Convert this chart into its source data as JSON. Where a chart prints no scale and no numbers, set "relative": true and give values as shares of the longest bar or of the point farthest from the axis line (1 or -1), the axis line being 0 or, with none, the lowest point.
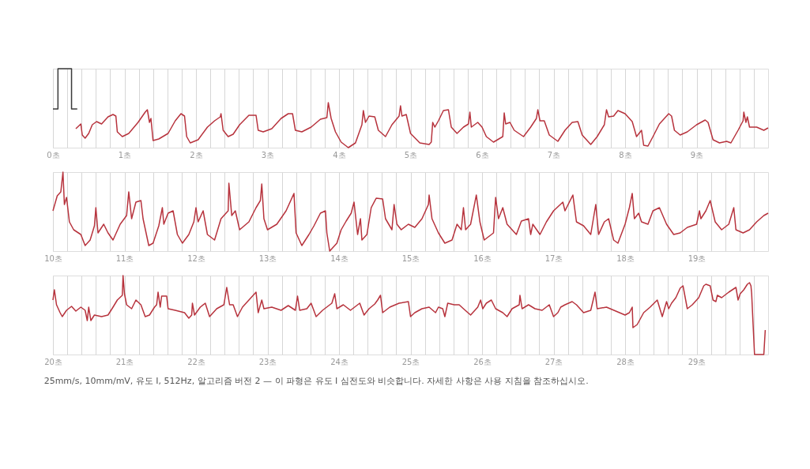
{
  "chart_data": [
    {
      "type": "line",
      "relative": true,
      "grid": "x",
      "tick_labels": "x",
      "xlim": [
        0,
        10
      ],
      "xticks": [
        {
          "value": 0,
          "label": "0초"
        },
        {
          "value": 0.2,
          "label": null
        },
        {
          "value": 0.4,
          "label": null
        },
        {
          "value": 0.6,
          "label": null
        },
        {
          "value": 0.8,
          "label": null
        },
        {
          "value": 1,
          "label": "1초"
        },
        {
          "value": 1.2,
          "label": null
        },
        {
          "value": 1.4,
          "label": null
        },
        {
          "value": 1.6,
          "label": null
        },
        {
          "value": 1.8,
          "label": null
        },
        {
          "value": 2,
          "label": "2초"
        },
        {
          "value": 2.2,
          "label": null
        },
        {
          "value": 2.4,
          "label": null
        },
        {
          "value": 2.6,
          "label": null
        },
        {
          "value": 2.8,
          "label": null
        },
        {
          "value": 3,
          "label": "3초"
        },
        {
          "value": 3.2,
          "label": null
        },
        {
          "value": 3.4,
          "label": null
        },
        {
          "value": 3.6,
          "label": null
        },
        {
          "value": 3.8,
          "label": null
        },
        {
          "value": 4,
          "label": "4초"
        },
        {
          "value": 4.2,
          "label": null
        },
        {
          "value": 4.4,
          "label": null
        },
        {
          "value": 4.6,
          "label": null
        },
        {
          "value": 4.8,
          "label": null
        },
        {
          "value": 5,
          "label": "5초"
        },
        {
          "value": 5.2,
          "label": null
        },
        {
          "value": 5.4,
          "label": null
        },
        {
          "value": 5.6,
          "label": null
        },
        {
          "value": 5.8,
          "label": null
        },
        {
          "value": 6,
          "label": "6초"
        },
        {
          "value": 6.2,
          "label": null
        },
        {
          "value": 6.4,
          "label": null
        },
        {
          "value": 6.6,
          "label": null
        },
        {
          "value": 6.8,
          "label": null
        },
        {
          "value": 7,
          "label": "7초"
        },
        {
          "value": 7.2,
          "label": null
        },
        {
          "value": 7.4,
          "label": null
        },
        {
          "value": 7.6,
          "label": null
        },
        {
          "value": 7.8,
          "label": null
        },
        {
          "value": 8,
          "label": "8초"
        },
        {
          "value": 8.2,
          "label": null
        },
        {
          "value": 8.4,
          "label": null
        },
        {
          "value": 8.6,
          "label": null
        },
        {
          "value": 8.8,
          "label": null
        },
        {
          "value": 9,
          "label": "9초"
        },
        {
          "value": 9.2,
          "label": null
        },
        {
          "value": 9.4,
          "label": null
        },
        {
          "value": 9.6,
          "label": null
        },
        {
          "value": 9.8,
          "label": null
        }
      ],
      "series": [
        {
          "color": "#3a3a3a",
          "x": [
            0,
            0.07,
            0.07,
            0.26,
            0.26,
            0.34
          ],
          "values": [
            0.49,
            0.49,
            1,
            1,
            0.49,
            0.49
          ]
        },
        {
          "color": "#b7333d",
          "x": [
            0.32,
            0.39,
            0.41,
            0.45,
            0.5,
            0.55,
            0.61,
            0.68,
            0.77,
            0.84,
            0.88,
            0.9,
            0.97,
            1.06,
            1.19,
            1.29,
            1.32,
            1.35,
            1.37,
            1.4,
            1.48,
            1.61,
            1.71,
            1.79,
            1.84,
            1.87,
            1.92,
            2.03,
            2.16,
            2.26,
            2.34,
            2.35,
            2.38,
            2.45,
            2.52,
            2.61,
            2.74,
            2.84,
            2.87,
            2.94,
            3.06,
            3.19,
            3.29,
            3.35,
            3.39,
            3.48,
            3.61,
            3.74,
            3.83,
            3.85,
            3.89,
            3.95,
            4.03,
            4.13,
            4.23,
            4.32,
            4.34,
            4.37,
            4.42,
            4.5,
            4.55,
            4.65,
            4.74,
            4.84,
            4.86,
            4.88,
            4.94,
            5.0,
            5.13,
            5.26,
            5.29,
            5.31,
            5.34,
            5.39,
            5.46,
            5.53,
            5.57,
            5.65,
            5.74,
            5.81,
            5.83,
            5.85,
            5.94,
            6.0,
            6.06,
            6.16,
            6.29,
            6.31,
            6.33,
            6.39,
            6.45,
            6.58,
            6.68,
            6.76,
            6.78,
            6.81,
            6.87,
            6.94,
            7.06,
            7.16,
            7.26,
            7.34,
            7.4,
            7.52,
            7.61,
            7.71,
            7.74,
            7.77,
            7.84,
            7.9,
            8.0,
            8.1,
            8.16,
            8.23,
            8.26,
            8.32,
            8.39,
            8.48,
            8.61,
            8.65,
            8.69,
            8.77,
            8.87,
            9.0,
            9.12,
            9.16,
            9.23,
            9.32,
            9.42,
            9.48,
            9.58,
            9.65,
            9.66,
            9.69,
            9.71,
            9.74,
            9.84,
            9.94,
            10.0
          ],
          "values": [
            0.24,
            0.3,
            0.16,
            0.12,
            0.18,
            0.29,
            0.33,
            0.3,
            0.39,
            0.42,
            0.4,
            0.2,
            0.14,
            0.18,
            0.32,
            0.45,
            0.48,
            0.32,
            0.37,
            0.09,
            0.11,
            0.18,
            0.34,
            0.43,
            0.4,
            0.14,
            0.06,
            0.1,
            0.26,
            0.34,
            0.39,
            0.43,
            0.22,
            0.14,
            0.17,
            0.29,
            0.41,
            0.41,
            0.22,
            0.2,
            0.24,
            0.37,
            0.43,
            0.43,
            0.22,
            0.2,
            0.26,
            0.36,
            0.38,
            0.57,
            0.37,
            0.2,
            0.07,
            0,
            0.06,
            0.29,
            0.47,
            0.32,
            0.4,
            0.39,
            0.22,
            0.14,
            0.29,
            0.4,
            0.53,
            0.4,
            0.42,
            0.18,
            0.06,
            0.04,
            0.07,
            0.32,
            0.26,
            0.34,
            0.47,
            0.48,
            0.26,
            0.18,
            0.26,
            0.3,
            0.45,
            0.26,
            0.32,
            0.26,
            0.14,
            0.07,
            0.14,
            0.44,
            0.3,
            0.32,
            0.22,
            0.14,
            0.26,
            0.37,
            0.48,
            0.34,
            0.34,
            0.16,
            0.08,
            0.22,
            0.32,
            0.33,
            0.16,
            0.04,
            0.14,
            0.29,
            0.48,
            0.39,
            0.4,
            0.47,
            0.43,
            0.33,
            0.14,
            0.22,
            0.03,
            0.02,
            0.14,
            0.3,
            0.43,
            0.4,
            0.22,
            0.16,
            0.2,
            0.29,
            0.35,
            0.32,
            0.1,
            0.06,
            0.08,
            0.06,
            0.22,
            0.34,
            0.45,
            0.32,
            0.39,
            0.26,
            0.26,
            0.22,
            0.25
          ]
        }
      ]
    },
    {
      "type": "line",
      "relative": true,
      "grid": "x",
      "tick_labels": "x",
      "xlim": [
        10,
        20
      ],
      "xticks": [
        {
          "value": 10,
          "label": "10초"
        },
        {
          "value": 10.2,
          "label": null
        },
        {
          "value": 10.4,
          "label": null
        },
        {
          "value": 10.6,
          "label": null
        },
        {
          "value": 10.8,
          "label": null
        },
        {
          "value": 11,
          "label": "11초"
        },
        {
          "value": 11.2,
          "label": null
        },
        {
          "value": 11.4,
          "label": null
        },
        {
          "value": 11.6,
          "label": null
        },
        {
          "value": 11.8,
          "label": null
        },
        {
          "value": 12,
          "label": "12초"
        },
        {
          "value": 12.2,
          "label": null
        },
        {
          "value": 12.4,
          "label": null
        },
        {
          "value": 12.6,
          "label": null
        },
        {
          "value": 12.8,
          "label": null
        },
        {
          "value": 13,
          "label": "13초"
        },
        {
          "value": 13.2,
          "label": null
        },
        {
          "value": 13.4,
          "label": null
        },
        {
          "value": 13.6,
          "label": null
        },
        {
          "value": 13.8,
          "label": null
        },
        {
          "value": 14,
          "label": "14초"
        },
        {
          "value": 14.2,
          "label": null
        },
        {
          "value": 14.4,
          "label": null
        },
        {
          "value": 14.6,
          "label": null
        },
        {
          "value": 14.8,
          "label": null
        },
        {
          "value": 15,
          "label": "15초"
        },
        {
          "value": 15.2,
          "label": null
        },
        {
          "value": 15.4,
          "label": null
        },
        {
          "value": 15.6,
          "label": null
        },
        {
          "value": 15.8,
          "label": null
        },
        {
          "value": 16,
          "label": "16초"
        },
        {
          "value": 16.2,
          "label": null
        },
        {
          "value": 16.4,
          "label": null
        },
        {
          "value": 16.6,
          "label": null
        },
        {
          "value": 16.8,
          "label": null
        },
        {
          "value": 17,
          "label": "17초"
        },
        {
          "value": 17.2,
          "label": null
        },
        {
          "value": 17.4,
          "label": null
        },
        {
          "value": 17.6,
          "label": null
        },
        {
          "value": 17.8,
          "label": null
        },
        {
          "value": 18,
          "label": "18초"
        },
        {
          "value": 18.2,
          "label": null
        },
        {
          "value": 18.4,
          "label": null
        },
        {
          "value": 18.6,
          "label": null
        },
        {
          "value": 18.8,
          "label": null
        },
        {
          "value": 19,
          "label": "19초"
        },
        {
          "value": 19.2,
          "label": null
        },
        {
          "value": 19.4,
          "label": null
        },
        {
          "value": 19.6,
          "label": null
        },
        {
          "value": 19.8,
          "label": null
        }
      ],
      "series": [
        {
          "color": "#b7333d",
          "x": [
            10.0,
            10.06,
            10.11,
            10.14,
            10.16,
            10.19,
            10.23,
            10.29,
            10.39,
            10.45,
            10.52,
            10.58,
            10.6,
            10.63,
            10.71,
            10.77,
            10.84,
            10.94,
            11.03,
            11.06,
            11.1,
            11.16,
            11.23,
            11.26,
            11.34,
            11.4,
            11.48,
            11.53,
            11.55,
            11.61,
            11.68,
            11.74,
            11.81,
            11.9,
            11.97,
            12.0,
            12.03,
            12.1,
            12.16,
            12.26,
            12.35,
            12.45,
            12.46,
            12.5,
            12.55,
            12.61,
            12.74,
            12.84,
            12.9,
            12.92,
            12.95,
            13.0,
            13.13,
            13.26,
            13.37,
            13.4,
            13.48,
            13.58,
            13.65,
            13.74,
            13.81,
            13.83,
            13.87,
            13.97,
            14.03,
            14.1,
            14.17,
            14.21,
            14.26,
            14.3,
            14.32,
            14.39,
            14.45,
            14.52,
            14.61,
            14.65,
            14.74,
            14.77,
            14.81,
            14.87,
            14.97,
            15.06,
            15.16,
            15.25,
            15.26,
            15.3,
            15.39,
            15.48,
            15.58,
            15.65,
            15.71,
            15.74,
            15.77,
            15.84,
            15.92,
            15.97,
            16.03,
            16.16,
            16.19,
            16.23,
            16.29,
            16.35,
            16.48,
            16.55,
            16.65,
            16.68,
            16.71,
            16.81,
            16.9,
            17.0,
            17.13,
            17.16,
            17.27,
            17.32,
            17.42,
            17.52,
            17.59,
            17.63,
            17.71,
            17.77,
            17.84,
            17.9,
            18.0,
            18.06,
            18.1,
            18.13,
            18.19,
            18.23,
            18.32,
            18.39,
            18.48,
            18.58,
            18.68,
            18.77,
            18.87,
            19.0,
            19.04,
            19.06,
            19.13,
            19.19,
            19.26,
            19.35,
            19.45,
            19.52,
            19.55,
            19.65,
            19.74,
            19.84,
            19.94,
            20.0
          ],
          "values": [
            0.51,
            0.7,
            0.75,
            1,
            0.59,
            0.68,
            0.37,
            0.27,
            0.21,
            0.07,
            0.14,
            0.32,
            0.55,
            0.23,
            0.34,
            0.23,
            0.14,
            0.34,
            0.45,
            0.75,
            0.41,
            0.62,
            0.64,
            0.41,
            0.07,
            0.1,
            0.32,
            0.55,
            0.34,
            0.48,
            0.51,
            0.21,
            0.1,
            0.21,
            0.37,
            0.55,
            0.37,
            0.51,
            0.21,
            0.14,
            0.41,
            0.51,
            0.86,
            0.45,
            0.51,
            0.27,
            0.37,
            0.55,
            0.64,
            0.85,
            0.41,
            0.27,
            0.34,
            0.51,
            0.73,
            0.23,
            0.07,
            0.21,
            0.32,
            0.48,
            0.51,
            0.23,
            0,
            0.1,
            0.27,
            0.38,
            0.48,
            0.62,
            0.21,
            0.41,
            0.14,
            0.21,
            0.55,
            0.67,
            0.66,
            0.41,
            0.27,
            0.59,
            0.34,
            0.27,
            0.34,
            0.3,
            0.41,
            0.59,
            0.71,
            0.41,
            0.23,
            0.1,
            0.14,
            0.34,
            0.27,
            0.55,
            0.27,
            0.34,
            0.71,
            0.37,
            0.14,
            0.23,
            0.68,
            0.41,
            0.55,
            0.34,
            0.21,
            0.38,
            0.41,
            0.21,
            0.34,
            0.21,
            0.37,
            0.51,
            0.62,
            0.51,
            0.71,
            0.37,
            0.32,
            0.21,
            0.59,
            0.21,
            0.37,
            0.41,
            0.14,
            0.1,
            0.34,
            0.55,
            0.73,
            0.41,
            0.48,
            0.37,
            0.34,
            0.51,
            0.55,
            0.34,
            0.21,
            0.23,
            0.3,
            0.34,
            0.51,
            0.41,
            0.51,
            0.64,
            0.37,
            0.27,
            0.34,
            0.55,
            0.27,
            0.23,
            0.27,
            0.37,
            0.45,
            0.48
          ]
        }
      ]
    },
    {
      "type": "line",
      "relative": true,
      "grid": "x",
      "tick_labels": "x",
      "xlim": [
        20,
        30
      ],
      "xticks": [
        {
          "value": 20,
          "label": "20초"
        },
        {
          "value": 20.2,
          "label": null
        },
        {
          "value": 20.4,
          "label": null
        },
        {
          "value": 20.6,
          "label": null
        },
        {
          "value": 20.8,
          "label": null
        },
        {
          "value": 21,
          "label": "21초"
        },
        {
          "value": 21.2,
          "label": null
        },
        {
          "value": 21.4,
          "label": null
        },
        {
          "value": 21.6,
          "label": null
        },
        {
          "value": 21.8,
          "label": null
        },
        {
          "value": 22,
          "label": "22초"
        },
        {
          "value": 22.2,
          "label": null
        },
        {
          "value": 22.4,
          "label": null
        },
        {
          "value": 22.6,
          "label": null
        },
        {
          "value": 22.8,
          "label": null
        },
        {
          "value": 23,
          "label": "23초"
        },
        {
          "value": 23.2,
          "label": null
        },
        {
          "value": 23.4,
          "label": null
        },
        {
          "value": 23.6,
          "label": null
        },
        {
          "value": 23.8,
          "label": null
        },
        {
          "value": 24,
          "label": "24초"
        },
        {
          "value": 24.2,
          "label": null
        },
        {
          "value": 24.4,
          "label": null
        },
        {
          "value": 24.6,
          "label": null
        },
        {
          "value": 24.8,
          "label": null
        },
        {
          "value": 25,
          "label": "25초"
        },
        {
          "value": 25.2,
          "label": null
        },
        {
          "value": 25.4,
          "label": null
        },
        {
          "value": 25.6,
          "label": null
        },
        {
          "value": 25.8,
          "label": null
        },
        {
          "value": 26,
          "label": "26초"
        },
        {
          "value": 26.2,
          "label": null
        },
        {
          "value": 26.4,
          "label": null
        },
        {
          "value": 26.6,
          "label": null
        },
        {
          "value": 26.8,
          "label": null
        },
        {
          "value": 27,
          "label": "27초"
        },
        {
          "value": 27.2,
          "label": null
        },
        {
          "value": 27.4,
          "label": null
        },
        {
          "value": 27.6,
          "label": null
        },
        {
          "value": 27.8,
          "label": null
        },
        {
          "value": 28,
          "label": "28초"
        },
        {
          "value": 28.2,
          "label": null
        },
        {
          "value": 28.4,
          "label": null
        },
        {
          "value": 28.6,
          "label": null
        },
        {
          "value": 28.8,
          "label": null
        },
        {
          "value": 29,
          "label": "29초"
        },
        {
          "value": 29.2,
          "label": null
        },
        {
          "value": 29.4,
          "label": null
        },
        {
          "value": 29.6,
          "label": null
        },
        {
          "value": 29.8,
          "label": null
        }
      ],
      "annotations": [
        "25mm/s, 10mm/mV, 유도 I, 512Hz, 알고리즘 버전 2 — 이 파형은 유도 I 심전도와 비슷합니다. 자세한 사항은 사용 지침을 참조하십시오."
      ],
      "series": [
        {
          "color": "#b7333d",
          "x": [
            20.0,
            20.02,
            20.05,
            20.1,
            20.13,
            20.19,
            20.26,
            20.32,
            20.39,
            20.45,
            20.48,
            20.5,
            20.53,
            20.58,
            20.68,
            20.77,
            20.84,
            20.9,
            20.97,
            20.98,
            21.0,
            21.03,
            21.1,
            21.16,
            21.23,
            21.29,
            21.35,
            21.42,
            21.45,
            21.47,
            21.5,
            21.52,
            21.59,
            21.61,
            21.71,
            21.84,
            21.9,
            21.94,
            21.95,
            21.98,
            22.06,
            22.13,
            22.19,
            22.29,
            22.39,
            22.43,
            22.47,
            22.52,
            22.58,
            22.65,
            22.74,
            22.84,
            22.87,
            22.92,
            22.95,
            23.06,
            23.19,
            23.29,
            23.39,
            23.42,
            23.45,
            23.55,
            23.61,
            23.68,
            23.77,
            23.9,
            23.94,
            23.97,
            24.06,
            24.16,
            24.29,
            24.35,
            24.42,
            24.5,
            24.54,
            24.58,
            24.61,
            24.71,
            24.84,
            24.97,
            25.0,
            25.06,
            25.16,
            25.26,
            25.35,
            25.39,
            25.45,
            25.48,
            25.52,
            25.61,
            25.68,
            25.74,
            25.84,
            25.94,
            25.98,
            26.01,
            26.06,
            26.13,
            26.19,
            26.29,
            26.35,
            26.42,
            26.52,
            26.53,
            26.56,
            26.65,
            26.74,
            26.84,
            26.94,
            27.0,
            27.06,
            27.1,
            27.16,
            27.26,
            27.32,
            27.42,
            27.52,
            27.58,
            27.61,
            27.74,
            27.87,
            28.0,
            28.06,
            28.1,
            28.11,
            28.17,
            28.26,
            28.35,
            28.45,
            28.52,
            28.58,
            28.61,
            28.65,
            28.71,
            28.77,
            28.81,
            28.87,
            28.94,
            29.03,
            29.1,
            29.13,
            29.19,
            29.23,
            29.27,
            29.29,
            29.35,
            29.45,
            29.55,
            29.58,
            29.61,
            29.66,
            29.71,
            29.74,
            29.76,
            29.77,
            29.79,
            29.81,
            29.94,
            29.96
          ],
          "values": [
            0.69,
            0.82,
            0.63,
            0.53,
            0.48,
            0.56,
            0.61,
            0.55,
            0.6,
            0.56,
            0.43,
            0.6,
            0.43,
            0.5,
            0.48,
            0.5,
            0.6,
            0.69,
            0.75,
            1,
            0.77,
            0.63,
            0.58,
            0.69,
            0.63,
            0.48,
            0.5,
            0.6,
            0.63,
            0.79,
            0.6,
            0.74,
            0.74,
            0.58,
            0.56,
            0.53,
            0.46,
            0.5,
            0.65,
            0.5,
            0.6,
            0.65,
            0.48,
            0.58,
            0.63,
            0.85,
            0.63,
            0.63,
            0.48,
            0.6,
            0.69,
            0.79,
            0.53,
            0.69,
            0.58,
            0.6,
            0.56,
            0.62,
            0.56,
            0.74,
            0.56,
            0.58,
            0.65,
            0.48,
            0.56,
            0.65,
            0.77,
            0.58,
            0.63,
            0.56,
            0.65,
            0.5,
            0.58,
            0.64,
            0.69,
            0.75,
            0.53,
            0.6,
            0.65,
            0.67,
            0.48,
            0.53,
            0.58,
            0.6,
            0.53,
            0.6,
            0.58,
            0.48,
            0.65,
            0.63,
            0.63,
            0.58,
            0.5,
            0.6,
            0.69,
            0.58,
            0.65,
            0.69,
            0.58,
            0.53,
            0.48,
            0.58,
            0.63,
            0.75,
            0.58,
            0.63,
            0.58,
            0.56,
            0.63,
            0.48,
            0.53,
            0.6,
            0.63,
            0.67,
            0.63,
            0.53,
            0.56,
            0.79,
            0.58,
            0.6,
            0.55,
            0.5,
            0.53,
            0.6,
            0.34,
            0.38,
            0.53,
            0.6,
            0.69,
            0.48,
            0.67,
            0.58,
            0.65,
            0.72,
            0.84,
            0.87,
            0.58,
            0.63,
            0.72,
            0.87,
            0.89,
            0.87,
            0.69,
            0.67,
            0.75,
            0.72,
            0.79,
            0.85,
            0.69,
            0.77,
            0.82,
            0.89,
            0.91,
            0.87,
            0.77,
            0.38,
            0,
            0,
            0.31
          ]
        }
      ]
    }
  ]
}
